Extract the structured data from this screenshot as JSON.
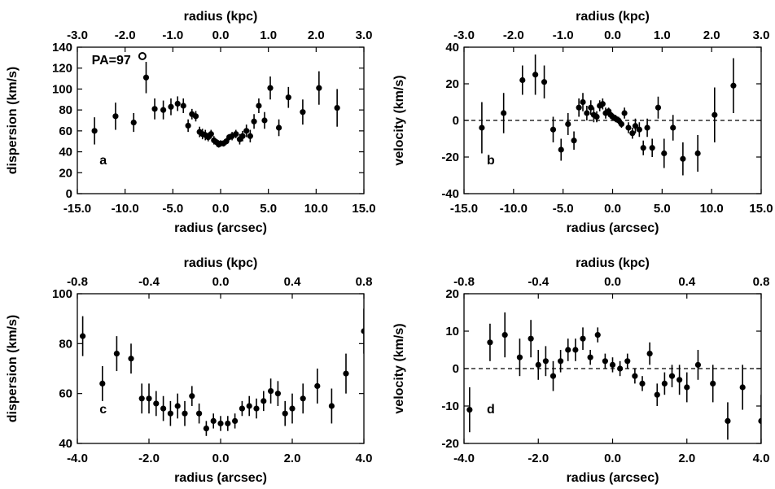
{
  "chart_data": [
    {
      "id": "a",
      "type": "scatter",
      "panel_label": "a",
      "annotation": "PA=97",
      "annotation_marker": "open-circle",
      "xlabel": "radius (arcsec)",
      "ylabel": "dispersion (km/s)",
      "top_xlabel": "radius (kpc)",
      "xlim": [
        -15,
        15
      ],
      "ylim": [
        0,
        140
      ],
      "xticks": [
        "-15.0",
        "-10.0",
        "-5.0",
        "0.0",
        "5.0",
        "10.0",
        "15.0"
      ],
      "yticks": [
        "0",
        "20",
        "40",
        "60",
        "80",
        "100",
        "120",
        "140"
      ],
      "top_ticks": [
        "-3.0",
        "-2.0",
        "-1.0",
        "0.0",
        "1.0",
        "2.0",
        "3.0"
      ],
      "zero_line": false,
      "points": [
        {
          "x": -13.2,
          "y": 60,
          "err": 13
        },
        {
          "x": -11.0,
          "y": 74,
          "err": 13
        },
        {
          "x": -9.1,
          "y": 68,
          "err": 9
        },
        {
          "x": -7.8,
          "y": 111,
          "err": 15
        },
        {
          "x": -6.9,
          "y": 81,
          "err": 10
        },
        {
          "x": -6.0,
          "y": 80,
          "err": 9
        },
        {
          "x": -5.2,
          "y": 83,
          "err": 8
        },
        {
          "x": -4.5,
          "y": 86,
          "err": 7
        },
        {
          "x": -3.9,
          "y": 84,
          "err": 7
        },
        {
          "x": -3.4,
          "y": 65,
          "err": 6
        },
        {
          "x": -3.0,
          "y": 76,
          "err": 5
        },
        {
          "x": -2.6,
          "y": 74,
          "err": 5
        },
        {
          "x": -2.2,
          "y": 59,
          "err": 5
        },
        {
          "x": -1.9,
          "y": 57,
          "err": 5
        },
        {
          "x": -1.6,
          "y": 56,
          "err": 5
        },
        {
          "x": -1.3,
          "y": 54,
          "err": 4
        },
        {
          "x": -1.0,
          "y": 57,
          "err": 4
        },
        {
          "x": -0.7,
          "y": 51,
          "err": 4
        },
        {
          "x": -0.4,
          "y": 49,
          "err": 3
        },
        {
          "x": -0.2,
          "y": 47,
          "err": 3
        },
        {
          "x": 0.0,
          "y": 48,
          "err": 3
        },
        {
          "x": 0.3,
          "y": 48,
          "err": 3
        },
        {
          "x": 0.6,
          "y": 50,
          "err": 3
        },
        {
          "x": 0.9,
          "y": 54,
          "err": 3
        },
        {
          "x": 1.2,
          "y": 55,
          "err": 4
        },
        {
          "x": 1.6,
          "y": 57,
          "err": 4
        },
        {
          "x": 2.0,
          "y": 52,
          "err": 5
        },
        {
          "x": 2.3,
          "y": 55,
          "err": 5
        },
        {
          "x": 2.7,
          "y": 60,
          "err": 6
        },
        {
          "x": 3.1,
          "y": 55,
          "err": 6
        },
        {
          "x": 3.5,
          "y": 69,
          "err": 7
        },
        {
          "x": 4.0,
          "y": 84,
          "err": 7
        },
        {
          "x": 4.6,
          "y": 70,
          "err": 8
        },
        {
          "x": 5.2,
          "y": 101,
          "err": 11
        },
        {
          "x": 6.1,
          "y": 63,
          "err": 8
        },
        {
          "x": 7.1,
          "y": 92,
          "err": 10
        },
        {
          "x": 8.6,
          "y": 78,
          "err": 12
        },
        {
          "x": 10.3,
          "y": 101,
          "err": 16
        },
        {
          "x": 12.2,
          "y": 82,
          "err": 18
        }
      ]
    },
    {
      "id": "b",
      "type": "scatter",
      "panel_label": "b",
      "xlabel": "radius (arcsec)",
      "ylabel": "velocity (km/s)",
      "top_xlabel": "radius (kpc)",
      "xlim": [
        -15,
        15
      ],
      "ylim": [
        -40,
        40
      ],
      "xticks": [
        "-15.0",
        "-10.0",
        "-5.0",
        "0.0",
        "5.0",
        "10.0",
        "15.0"
      ],
      "yticks": [
        "-40",
        "-20",
        "0",
        "20",
        "40"
      ],
      "top_ticks": [
        "-3.0",
        "-2.0",
        "-1.0",
        "0.0",
        "1.0",
        "2.0",
        "3.0"
      ],
      "zero_line": true,
      "points": [
        {
          "x": -13.2,
          "y": -4,
          "err": 14
        },
        {
          "x": -11.0,
          "y": 4,
          "err": 11
        },
        {
          "x": -9.1,
          "y": 22,
          "err": 8
        },
        {
          "x": -7.8,
          "y": 25,
          "err": 11
        },
        {
          "x": -6.9,
          "y": 21,
          "err": 9
        },
        {
          "x": -6.0,
          "y": -5,
          "err": 7
        },
        {
          "x": -5.2,
          "y": -16,
          "err": 6
        },
        {
          "x": -4.5,
          "y": -2,
          "err": 6
        },
        {
          "x": -3.9,
          "y": -11,
          "err": 5
        },
        {
          "x": -3.4,
          "y": 7,
          "err": 5
        },
        {
          "x": -3.0,
          "y": 10,
          "err": 5
        },
        {
          "x": -2.6,
          "y": 4,
          "err": 4
        },
        {
          "x": -2.2,
          "y": 7,
          "err": 4
        },
        {
          "x": -1.9,
          "y": 3,
          "err": 4
        },
        {
          "x": -1.6,
          "y": 2,
          "err": 3
        },
        {
          "x": -1.3,
          "y": 8,
          "err": 3
        },
        {
          "x": -1.0,
          "y": 9,
          "err": 3
        },
        {
          "x": -0.7,
          "y": 4,
          "err": 3
        },
        {
          "x": -0.4,
          "y": 5,
          "err": 2
        },
        {
          "x": -0.2,
          "y": 3,
          "err": 2
        },
        {
          "x": 0.0,
          "y": 2,
          "err": 2
        },
        {
          "x": 0.3,
          "y": 1,
          "err": 2
        },
        {
          "x": 0.6,
          "y": 0,
          "err": 2
        },
        {
          "x": 0.9,
          "y": -2,
          "err": 2
        },
        {
          "x": 1.2,
          "y": 4,
          "err": 3
        },
        {
          "x": 1.6,
          "y": -4,
          "err": 3
        },
        {
          "x": 2.0,
          "y": -7,
          "err": 3
        },
        {
          "x": 2.3,
          "y": -3,
          "err": 4
        },
        {
          "x": 2.7,
          "y": -5,
          "err": 4
        },
        {
          "x": 3.1,
          "y": -15,
          "err": 4
        },
        {
          "x": 3.5,
          "y": -4,
          "err": 5
        },
        {
          "x": 4.0,
          "y": -15,
          "err": 5
        },
        {
          "x": 4.6,
          "y": 7,
          "err": 6
        },
        {
          "x": 5.2,
          "y": -18,
          "err": 8
        },
        {
          "x": 6.1,
          "y": -4,
          "err": 7
        },
        {
          "x": 7.1,
          "y": -21,
          "err": 9
        },
        {
          "x": 8.6,
          "y": -18,
          "err": 10
        },
        {
          "x": 10.3,
          "y": 3,
          "err": 15
        },
        {
          "x": 12.2,
          "y": 19,
          "err": 15
        }
      ]
    },
    {
      "id": "c",
      "type": "scatter",
      "panel_label": "c",
      "xlabel": "radius (arcsec)",
      "ylabel": "dispersion (km/s)",
      "top_xlabel": "radius (kpc)",
      "xlim": [
        -4,
        4
      ],
      "ylim": [
        40,
        100
      ],
      "xticks": [
        "-4.0",
        "-2.0",
        "0.0",
        "2.0",
        "4.0"
      ],
      "yticks": [
        "40",
        "60",
        "80",
        "100"
      ],
      "top_ticks": [
        "-0.8",
        "-0.4",
        "0.0",
        "0.4",
        "0.8"
      ],
      "zero_line": false,
      "points": [
        {
          "x": -3.85,
          "y": 83,
          "err": 8
        },
        {
          "x": -3.3,
          "y": 64,
          "err": 7
        },
        {
          "x": -2.9,
          "y": 76,
          "err": 7
        },
        {
          "x": -2.5,
          "y": 74,
          "err": 6
        },
        {
          "x": -2.2,
          "y": 58,
          "err": 6
        },
        {
          "x": -2.0,
          "y": 58,
          "err": 6
        },
        {
          "x": -1.8,
          "y": 56,
          "err": 5
        },
        {
          "x": -1.6,
          "y": 54,
          "err": 5
        },
        {
          "x": -1.4,
          "y": 52,
          "err": 5
        },
        {
          "x": -1.2,
          "y": 55,
          "err": 5
        },
        {
          "x": -1.0,
          "y": 52,
          "err": 5
        },
        {
          "x": -0.8,
          "y": 59,
          "err": 4
        },
        {
          "x": -0.6,
          "y": 52,
          "err": 4
        },
        {
          "x": -0.4,
          "y": 46,
          "err": 3
        },
        {
          "x": -0.2,
          "y": 49,
          "err": 3
        },
        {
          "x": 0.0,
          "y": 48,
          "err": 3
        },
        {
          "x": 0.2,
          "y": 48,
          "err": 3
        },
        {
          "x": 0.4,
          "y": 49,
          "err": 3
        },
        {
          "x": 0.6,
          "y": 54,
          "err": 3
        },
        {
          "x": 0.8,
          "y": 55,
          "err": 4
        },
        {
          "x": 1.0,
          "y": 54,
          "err": 4
        },
        {
          "x": 1.2,
          "y": 57,
          "err": 4
        },
        {
          "x": 1.4,
          "y": 61,
          "err": 5
        },
        {
          "x": 1.6,
          "y": 60,
          "err": 5
        },
        {
          "x": 1.8,
          "y": 52,
          "err": 5
        },
        {
          "x": 2.0,
          "y": 54,
          "err": 6
        },
        {
          "x": 2.3,
          "y": 58,
          "err": 6
        },
        {
          "x": 2.7,
          "y": 63,
          "err": 7
        },
        {
          "x": 3.1,
          "y": 55,
          "err": 7
        },
        {
          "x": 3.5,
          "y": 68,
          "err": 8
        },
        {
          "x": 4.0,
          "y": 85,
          "err": 9
        }
      ]
    },
    {
      "id": "d",
      "type": "scatter",
      "panel_label": "d",
      "xlabel": "radius (arcsec)",
      "ylabel": "velocity (km/s)",
      "top_xlabel": "radius (kpc)",
      "xlim": [
        -4,
        4
      ],
      "ylim": [
        -20,
        20
      ],
      "xticks": [
        "-4.0",
        "-2.0",
        "0.0",
        "2.0",
        "4.0"
      ],
      "yticks": [
        "-20",
        "-10",
        "0",
        "10",
        "20"
      ],
      "top_ticks": [
        "-0.8",
        "-0.4",
        "0.0",
        "0.4",
        "0.8"
      ],
      "zero_line": true,
      "points": [
        {
          "x": -3.85,
          "y": -11,
          "err": 6
        },
        {
          "x": -3.3,
          "y": 7,
          "err": 5
        },
        {
          "x": -2.9,
          "y": 9,
          "err": 6
        },
        {
          "x": -2.5,
          "y": 3,
          "err": 5
        },
        {
          "x": -2.2,
          "y": 8,
          "err": 5
        },
        {
          "x": -2.0,
          "y": 1,
          "err": 4
        },
        {
          "x": -1.8,
          "y": 2,
          "err": 4
        },
        {
          "x": -1.6,
          "y": -2,
          "err": 4
        },
        {
          "x": -1.4,
          "y": 2,
          "err": 3
        },
        {
          "x": -1.2,
          "y": 5,
          "err": 3
        },
        {
          "x": -1.0,
          "y": 5,
          "err": 3
        },
        {
          "x": -0.8,
          "y": 8,
          "err": 3
        },
        {
          "x": -0.6,
          "y": 3,
          "err": 2
        },
        {
          "x": -0.4,
          "y": 9,
          "err": 2
        },
        {
          "x": -0.2,
          "y": 2,
          "err": 2
        },
        {
          "x": 0.0,
          "y": 1,
          "err": 2
        },
        {
          "x": 0.2,
          "y": 0,
          "err": 2
        },
        {
          "x": 0.4,
          "y": 2,
          "err": 2
        },
        {
          "x": 0.6,
          "y": -2,
          "err": 2
        },
        {
          "x": 0.8,
          "y": -4,
          "err": 2
        },
        {
          "x": 1.0,
          "y": 4,
          "err": 3
        },
        {
          "x": 1.2,
          "y": -7,
          "err": 3
        },
        {
          "x": 1.4,
          "y": -4,
          "err": 3
        },
        {
          "x": 1.6,
          "y": -2,
          "err": 3
        },
        {
          "x": 1.8,
          "y": -3,
          "err": 4
        },
        {
          "x": 2.0,
          "y": -5,
          "err": 4
        },
        {
          "x": 2.3,
          "y": 1,
          "err": 4
        },
        {
          "x": 2.7,
          "y": -4,
          "err": 5
        },
        {
          "x": 3.1,
          "y": -14,
          "err": 5
        },
        {
          "x": 3.5,
          "y": -5,
          "err": 6
        },
        {
          "x": 4.0,
          "y": -14,
          "err": 7
        }
      ]
    }
  ]
}
